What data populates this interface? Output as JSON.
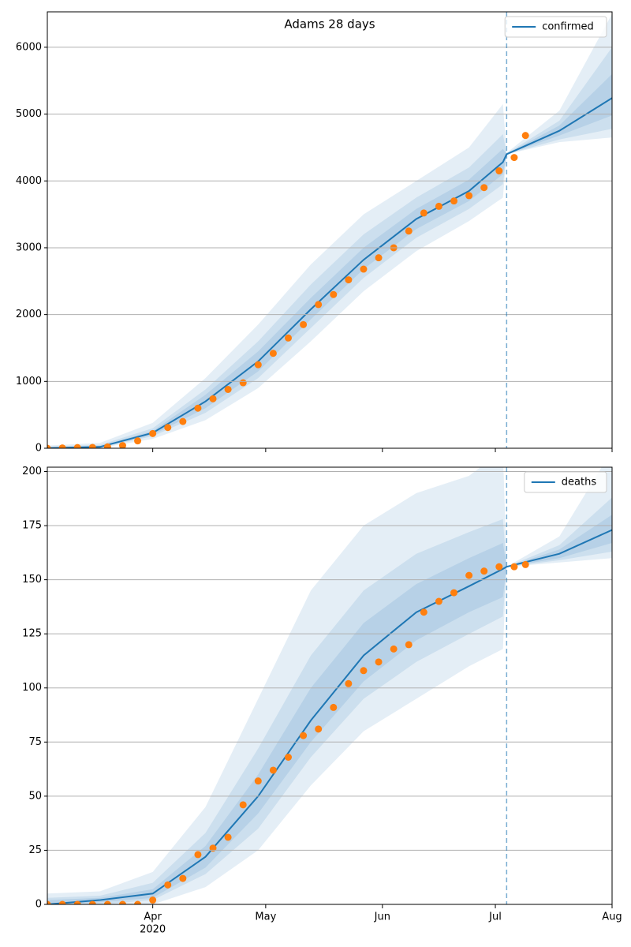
{
  "chart_data": [
    {
      "type": "line",
      "title": "Adams 28 days",
      "x": [
        "2020-03-04",
        "2020-03-18",
        "2020-04-01",
        "2020-04-15",
        "2020-04-29",
        "2020-05-13",
        "2020-05-27",
        "2020-06-10",
        "2020-06-24",
        "2020-07-03",
        "2020-07-04",
        "2020-07-18",
        "2020-08-01"
      ],
      "series": [
        {
          "name": "confirmed",
          "color": "#1f77b4",
          "values": [
            0,
            20,
            230,
            700,
            1300,
            2080,
            2820,
            3430,
            3850,
            4280,
            4400,
            4750,
            5240
          ]
        }
      ],
      "bands": [
        {
          "color": "#1f77b4",
          "lower": [
            0,
            5,
            140,
            420,
            900,
            1600,
            2350,
            2950,
            3400,
            3750,
            4400,
            4580,
            4650
          ],
          "upper": [
            40,
            80,
            380,
            1050,
            1850,
            2750,
            3500,
            4000,
            4500,
            5150,
            4420,
            5050,
            6500
          ]
        },
        {
          "color": "#1f77b4",
          "lower": [
            0,
            10,
            180,
            530,
            1050,
            1800,
            2550,
            3150,
            3580,
            3950,
            4400,
            4620,
            4780
          ],
          "upper": [
            25,
            50,
            300,
            880,
            1600,
            2450,
            3200,
            3750,
            4200,
            4700,
            4410,
            4900,
            6000
          ]
        },
        {
          "color": "#1f77b4",
          "lower": [
            0,
            15,
            200,
            600,
            1150,
            1930,
            2680,
            3280,
            3700,
            4100,
            4400,
            4680,
            4980
          ],
          "upper": [
            20,
            35,
            260,
            800,
            1450,
            2250,
            3000,
            3580,
            4020,
            4480,
            4405,
            4830,
            5600
          ]
        }
      ],
      "observed": {
        "color": "#ff7f0e",
        "x": [
          "2020-03-04",
          "2020-03-08",
          "2020-03-12",
          "2020-03-16",
          "2020-03-20",
          "2020-03-24",
          "2020-03-28",
          "2020-04-01",
          "2020-04-05",
          "2020-04-09",
          "2020-04-13",
          "2020-04-17",
          "2020-04-21",
          "2020-04-25",
          "2020-04-29",
          "2020-05-03",
          "2020-05-07",
          "2020-05-11",
          "2020-05-15",
          "2020-05-19",
          "2020-05-23",
          "2020-05-27",
          "2020-05-31",
          "2020-06-04",
          "2020-06-08",
          "2020-06-12",
          "2020-06-16",
          "2020-06-20",
          "2020-06-24",
          "2020-06-28",
          "2020-07-02",
          "2020-07-06",
          "2020-07-09"
        ],
        "values": [
          0,
          5,
          10,
          12,
          20,
          40,
          110,
          220,
          310,
          400,
          600,
          740,
          880,
          980,
          1250,
          1420,
          1650,
          1850,
          2150,
          2300,
          2520,
          2680,
          2850,
          3000,
          3250,
          3520,
          3620,
          3700,
          3780,
          3900,
          4150,
          4350,
          4680
        ]
      },
      "vline_x": "2020-07-04",
      "xlim": [
        "2020-03-04",
        "2020-08-01"
      ],
      "xticks": [
        "2020-04-01",
        "2020-05-01",
        "2020-06-01",
        "2020-07-01",
        "2020-08-01"
      ],
      "ylim": [
        0,
        6530
      ],
      "yticks": [
        0,
        1000,
        2000,
        3000,
        4000,
        5000,
        6000
      ],
      "grid": true,
      "legend": "upper right"
    },
    {
      "type": "line",
      "x": [
        "2020-03-04",
        "2020-03-18",
        "2020-04-01",
        "2020-04-15",
        "2020-04-29",
        "2020-05-13",
        "2020-05-27",
        "2020-06-10",
        "2020-06-24",
        "2020-07-03",
        "2020-07-04",
        "2020-07-18",
        "2020-08-01"
      ],
      "series": [
        {
          "name": "deaths",
          "color": "#1f77b4",
          "values": [
            0,
            2,
            5,
            22,
            50,
            85,
            115,
            135,
            147,
            155,
            156,
            162,
            173
          ]
        }
      ],
      "bands": [
        {
          "color": "#1f77b4",
          "lower": [
            0,
            0,
            0,
            8,
            25,
            55,
            80,
            95,
            110,
            118,
            156,
            158,
            160
          ],
          "upper": [
            5,
            6,
            15,
            45,
            95,
            145,
            175,
            190,
            198,
            210,
            156,
            170,
            210
          ]
        },
        {
          "color": "#1f77b4",
          "lower": [
            0,
            0,
            2,
            14,
            35,
            68,
            95,
            112,
            125,
            133,
            156,
            159,
            163
          ],
          "upper": [
            3,
            4,
            10,
            33,
            72,
            115,
            145,
            162,
            172,
            178,
            156,
            166,
            188
          ]
        },
        {
          "color": "#1f77b4",
          "lower": [
            0,
            1,
            3,
            17,
            42,
            75,
            103,
            122,
            135,
            142,
            156,
            160,
            167
          ],
          "upper": [
            2,
            3,
            7,
            27,
            60,
            100,
            130,
            148,
            160,
            167,
            156,
            164,
            180
          ]
        }
      ],
      "observed": {
        "color": "#ff7f0e",
        "x": [
          "2020-03-04",
          "2020-03-08",
          "2020-03-12",
          "2020-03-16",
          "2020-03-20",
          "2020-03-24",
          "2020-03-28",
          "2020-04-01",
          "2020-04-05",
          "2020-04-09",
          "2020-04-13",
          "2020-04-17",
          "2020-04-21",
          "2020-04-25",
          "2020-04-29",
          "2020-05-03",
          "2020-05-07",
          "2020-05-11",
          "2020-05-15",
          "2020-05-19",
          "2020-05-23",
          "2020-05-27",
          "2020-05-31",
          "2020-06-04",
          "2020-06-08",
          "2020-06-12",
          "2020-06-16",
          "2020-06-20",
          "2020-06-24",
          "2020-06-28",
          "2020-07-02",
          "2020-07-06",
          "2020-07-09"
        ],
        "values": [
          0,
          0,
          0,
          0,
          0,
          0,
          0,
          2,
          9,
          12,
          23,
          26,
          31,
          46,
          57,
          62,
          68,
          78,
          81,
          91,
          102,
          108,
          112,
          118,
          120,
          135,
          140,
          144,
          152,
          154,
          156,
          156,
          157
        ]
      },
      "vline_x": "2020-07-04",
      "xlim": [
        "2020-03-04",
        "2020-08-01"
      ],
      "xticks": [
        {
          "value": "2020-04-01",
          "label": "Apr"
        },
        {
          "value": "2020-05-01",
          "label": "May"
        },
        {
          "value": "2020-06-01",
          "label": "Jun"
        },
        {
          "value": "2020-07-01",
          "label": "Jul"
        },
        {
          "value": "2020-08-01",
          "label": "Aug"
        }
      ],
      "xtick_year": "2020",
      "ylim": [
        0,
        202
      ],
      "yticks": [
        0,
        25,
        50,
        75,
        100,
        125,
        150,
        175,
        200
      ],
      "grid": true,
      "legend": "upper right"
    }
  ]
}
